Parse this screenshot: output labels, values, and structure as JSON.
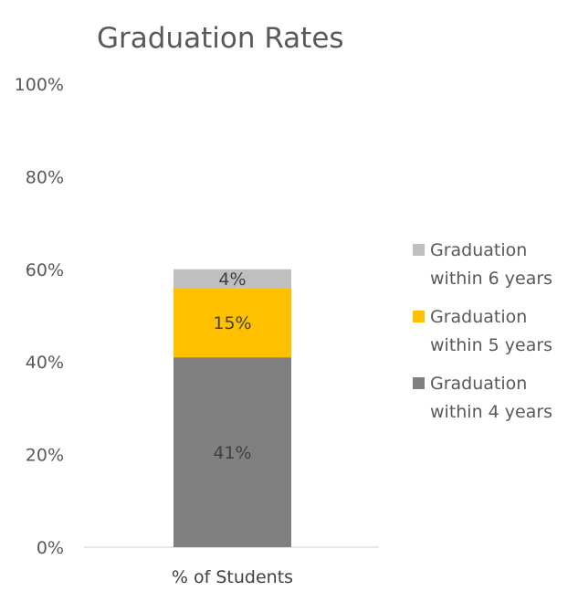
{
  "chart_data": {
    "type": "bar",
    "stacked": true,
    "title": "Graduation Rates",
    "categories": [
      "% of Students"
    ],
    "series": [
      {
        "name": "Graduation within 4 years",
        "values": [
          41
        ],
        "data_label": "41%",
        "legend_lines": [
          "Graduation",
          "within 4 years"
        ],
        "color": "#808080"
      },
      {
        "name": "Graduation within 5 years",
        "values": [
          15
        ],
        "data_label": "15%",
        "legend_lines": [
          "Graduation",
          "within 5 years"
        ],
        "color": "#FFC000"
      },
      {
        "name": "Graduation within 6 years",
        "values": [
          4
        ],
        "data_label": "4%",
        "legend_lines": [
          "Graduation",
          "within 6 years"
        ],
        "color": "#BFBFBF"
      }
    ],
    "ylim": [
      0,
      100
    ],
    "yticks": [
      0,
      20,
      40,
      60,
      80,
      100
    ],
    "ytick_labels": [
      "0%",
      "20%",
      "40%",
      "60%",
      "80%",
      "100%"
    ],
    "grid": false,
    "legend_position": "right"
  }
}
